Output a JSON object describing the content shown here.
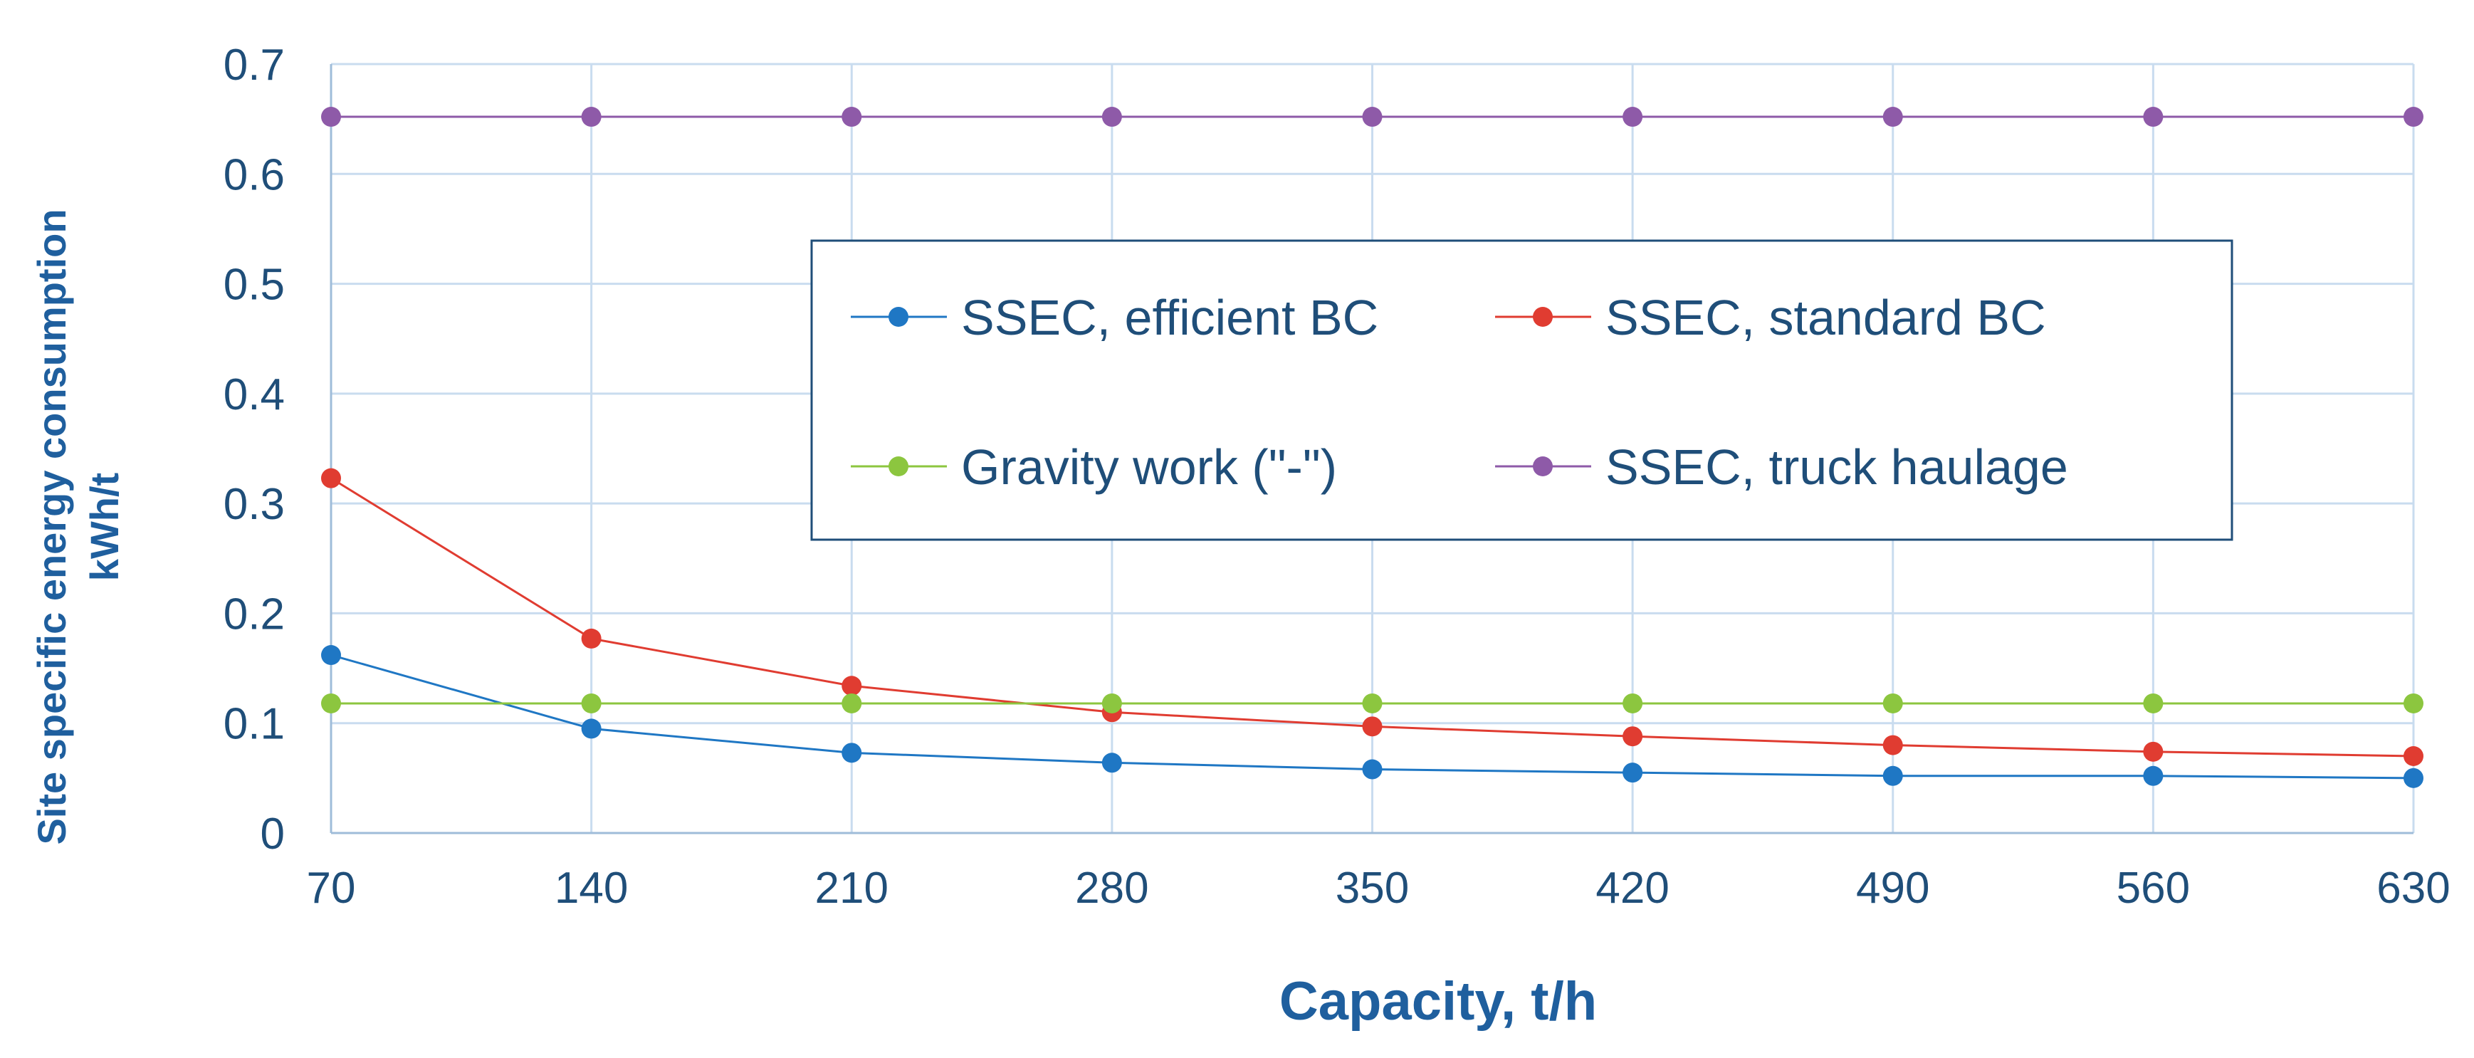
{
  "chart_data": {
    "type": "line",
    "title": "",
    "xlabel": "Capacity, t/h",
    "ylabel_line1": "Site specific energy consumption",
    "ylabel_line2": "kWh/t",
    "categories": [
      "70",
      "140",
      "210",
      "280",
      "350",
      "420",
      "490",
      "560",
      "630"
    ],
    "ylim": [
      0,
      0.7
    ],
    "yticks": [
      "0",
      "0.1",
      "0.2",
      "0.3",
      "0.4",
      "0.5",
      "0.6",
      "0.7"
    ],
    "grid": true,
    "legend_position": "center",
    "series": [
      {
        "name": "SSEC, efficient BC",
        "color": "#1f77c4",
        "values": [
          0.162,
          0.095,
          0.073,
          0.064,
          0.058,
          0.055,
          0.052,
          0.052,
          0.05
        ]
      },
      {
        "name": "SSEC, standard BC",
        "color": "#e03c31",
        "values": [
          0.323,
          0.177,
          0.134,
          0.11,
          0.097,
          0.088,
          0.08,
          0.074,
          0.07
        ]
      },
      {
        "name": "Gravity work (\"-\")",
        "color": "#8cc63f",
        "values": [
          0.118,
          0.118,
          0.118,
          0.118,
          0.118,
          0.118,
          0.118,
          0.118,
          0.118
        ]
      },
      {
        "name": "SSEC, truck haulage",
        "color": "#8e5aa8",
        "values": [
          0.652,
          0.652,
          0.652,
          0.652,
          0.652,
          0.652,
          0.652,
          0.652,
          0.652
        ]
      }
    ]
  }
}
